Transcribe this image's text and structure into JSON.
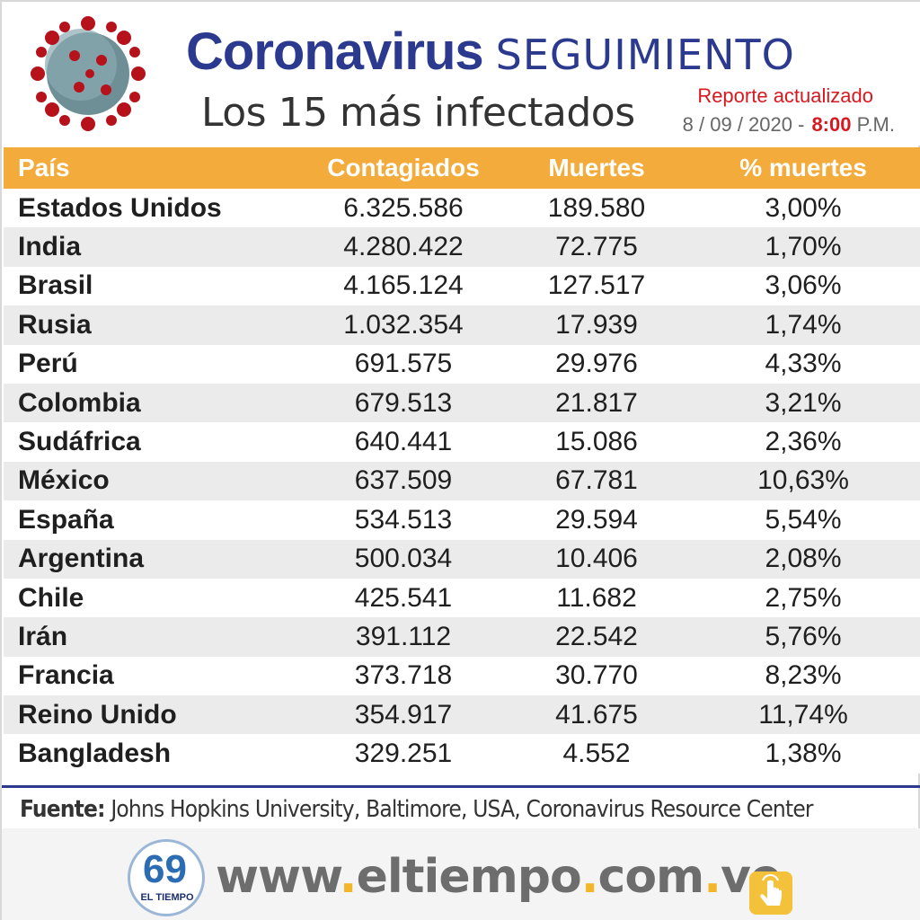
{
  "header": {
    "title_bold": "Coronavirus",
    "title_light": "SEGUIMIENTO",
    "subtitle": "Los 15 más infectados",
    "report_label": "Reporte actualizado",
    "report_date": "8 / 09 / 2020 -",
    "report_time": "8:00",
    "report_ampm": "P.M."
  },
  "table": {
    "headers": [
      "País",
      "Contagiados",
      "Muertes",
      "% muertes"
    ],
    "rows": [
      [
        "Estados Unidos",
        "6.325.586",
        "189.580",
        "3,00%"
      ],
      [
        "India",
        "4.280.422",
        "72.775",
        "1,70%"
      ],
      [
        "Brasil",
        "4.165.124",
        "127.517",
        "3,06%"
      ],
      [
        "Rusia",
        "1.032.354",
        "17.939",
        "1,74%"
      ],
      [
        "Perú",
        "691.575",
        "29.976",
        "4,33%"
      ],
      [
        "Colombia",
        "679.513",
        "21.817",
        "3,21%"
      ],
      [
        "Sudáfrica",
        "640.441",
        "15.086",
        "2,36%"
      ],
      [
        "México",
        "637.509",
        "67.781",
        "10,63%"
      ],
      [
        "España",
        "534.513",
        "29.594",
        "5,54%"
      ],
      [
        "Argentina",
        "500.034",
        "10.406",
        "2,08%"
      ],
      [
        "Chile",
        "425.541",
        "11.682",
        "2,75%"
      ],
      [
        "Irán",
        "391.112",
        "22.542",
        "5,76%"
      ],
      [
        "Francia",
        "373.718",
        "30.770",
        "8,23%"
      ],
      [
        "Reino Unido",
        "354.917",
        "41.675",
        "11,74%"
      ],
      [
        "Bangladesh",
        "329.251",
        "4.552",
        "1,38%"
      ]
    ]
  },
  "source": {
    "label": "Fuente:",
    "text": "Johns Hopkins University, Baltimore, USA, Coronavirus Resource Center"
  },
  "footer": {
    "logo_number": "69",
    "logo_text": "EL TIEMPO",
    "url_parts": [
      "www",
      ".",
      "eltiempo",
      ".",
      "com",
      ".",
      "ve"
    ]
  },
  "colors": {
    "brand_blue": "#2b3a8f",
    "accent_orange": "#f3ac3c",
    "accent_red": "#d7181f",
    "url_dot_yellow": "#f3b52a"
  },
  "icons": {
    "illustration": "coronavirus-icon",
    "footer_action": "hand-pointer-icon"
  }
}
